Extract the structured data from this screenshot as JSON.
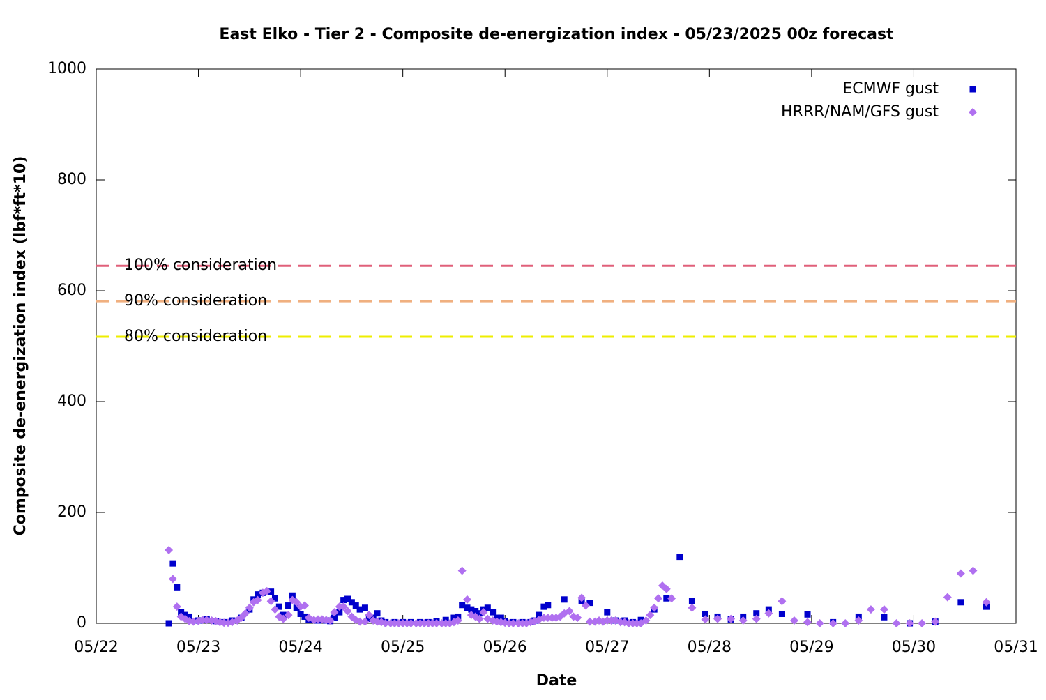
{
  "chart_data": {
    "type": "scatter",
    "title": "East Elko - Tier 2 - Composite de-energization index - 05/23/2025 00z forecast",
    "xlabel": "Date",
    "ylabel": "Composite de-energization index (lbf*ft*10)",
    "xlim": [
      0,
      9
    ],
    "xticks": [
      {
        "value": 0,
        "label": "05/22"
      },
      {
        "value": 1,
        "label": "05/23"
      },
      {
        "value": 2,
        "label": "05/24"
      },
      {
        "value": 3,
        "label": "05/25"
      },
      {
        "value": 4,
        "label": "05/26"
      },
      {
        "value": 5,
        "label": "05/27"
      },
      {
        "value": 6,
        "label": "05/28"
      },
      {
        "value": 7,
        "label": "05/29"
      },
      {
        "value": 8,
        "label": "05/30"
      },
      {
        "value": 9,
        "label": "05/31"
      }
    ],
    "ylim": [
      0,
      1000
    ],
    "yticks": [
      0,
      200,
      400,
      600,
      800,
      1000
    ],
    "legend": "top-right",
    "reference_lines": [
      {
        "label": "100% consideration",
        "value": 645,
        "color": "#e0607a"
      },
      {
        "label": "90% consideration",
        "value": 581,
        "color": "#f0b080"
      },
      {
        "label": "80% consideration",
        "value": 517,
        "color": "#eeee00"
      }
    ],
    "series": [
      {
        "name": "ECMWF gust",
        "color": "#0000cc",
        "marker": "square",
        "x": [
          0.71,
          0.75,
          0.79,
          0.83,
          0.87,
          0.91,
          1.0,
          1.08,
          1.17,
          1.25,
          1.33,
          1.42,
          1.5,
          1.54,
          1.58,
          1.63,
          1.71,
          1.75,
          1.79,
          1.83,
          1.88,
          1.92,
          1.96,
          2.0,
          2.04,
          2.08,
          2.17,
          2.25,
          2.29,
          2.33,
          2.38,
          2.42,
          2.46,
          2.5,
          2.54,
          2.58,
          2.63,
          2.67,
          2.71,
          2.75,
          2.79,
          2.83,
          2.92,
          3.0,
          3.08,
          3.17,
          3.25,
          3.33,
          3.42,
          3.5,
          3.54,
          3.58,
          3.63,
          3.67,
          3.71,
          3.75,
          3.79,
          3.83,
          3.88,
          3.92,
          3.96,
          4.0,
          4.08,
          4.17,
          4.25,
          4.29,
          4.33,
          4.38,
          4.42,
          4.58,
          4.75,
          4.83,
          5.0,
          5.08,
          5.17,
          5.25,
          5.33,
          5.46,
          5.58,
          5.71,
          5.83,
          5.96,
          6.08,
          6.21,
          6.33,
          6.46,
          6.58,
          6.71,
          6.96,
          7.21,
          7.46,
          7.71,
          7.96,
          8.21,
          8.46,
          8.71
        ],
        "values": [
          0,
          108,
          65,
          20,
          15,
          12,
          5,
          7,
          4,
          2,
          5,
          10,
          25,
          43,
          52,
          55,
          57,
          45,
          30,
          15,
          32,
          50,
          28,
          17,
          12,
          6,
          5,
          5,
          4,
          10,
          20,
          42,
          44,
          38,
          32,
          25,
          28,
          8,
          10,
          18,
          5,
          2,
          2,
          2,
          2,
          2,
          2,
          4,
          6,
          10,
          12,
          33,
          28,
          25,
          22,
          18,
          25,
          28,
          20,
          10,
          10,
          4,
          2,
          2,
          2,
          5,
          15,
          30,
          33,
          43,
          40,
          37,
          20,
          5,
          5,
          2,
          6,
          25,
          45,
          120,
          40,
          17,
          12,
          7,
          12,
          18,
          25,
          17,
          16,
          2,
          12,
          11,
          0,
          3,
          38,
          30
        ]
      },
      {
        "name": "HRRR/NAM/GFS gust",
        "color": "#b070f0",
        "marker": "diamond",
        "x": [
          0.71,
          0.75,
          0.79,
          0.83,
          0.87,
          0.91,
          0.95,
          1.0,
          1.04,
          1.08,
          1.13,
          1.17,
          1.21,
          1.25,
          1.29,
          1.33,
          1.38,
          1.42,
          1.46,
          1.5,
          1.54,
          1.58,
          1.63,
          1.67,
          1.71,
          1.75,
          1.79,
          1.83,
          1.88,
          1.92,
          1.96,
          2.0,
          2.04,
          2.08,
          2.13,
          2.17,
          2.21,
          2.25,
          2.29,
          2.33,
          2.38,
          2.42,
          2.46,
          2.5,
          2.54,
          2.58,
          2.63,
          2.67,
          2.71,
          2.75,
          2.79,
          2.83,
          2.88,
          2.92,
          2.96,
          3.0,
          3.04,
          3.08,
          3.13,
          3.17,
          3.21,
          3.25,
          3.29,
          3.33,
          3.38,
          3.42,
          3.46,
          3.5,
          3.54,
          3.58,
          3.63,
          3.67,
          3.71,
          3.75,
          3.79,
          3.83,
          3.88,
          3.92,
          3.96,
          4.0,
          4.04,
          4.08,
          4.13,
          4.17,
          4.21,
          4.25,
          4.29,
          4.33,
          4.38,
          4.42,
          4.46,
          4.5,
          4.54,
          4.58,
          4.63,
          4.67,
          4.71,
          4.75,
          4.79,
          4.83,
          4.88,
          4.92,
          4.96,
          5.0,
          5.04,
          5.08,
          5.13,
          5.17,
          5.21,
          5.25,
          5.29,
          5.33,
          5.38,
          5.42,
          5.46,
          5.5,
          5.54,
          5.58,
          5.63,
          5.83,
          5.96,
          6.08,
          6.21,
          6.33,
          6.46,
          6.58,
          6.71,
          6.83,
          6.96,
          7.08,
          7.21,
          7.33,
          7.46,
          7.58,
          7.71,
          7.83,
          7.96,
          8.08,
          8.21,
          8.33,
          8.46,
          8.58,
          8.71
        ],
        "values": [
          132,
          80,
          30,
          12,
          8,
          4,
          3,
          4,
          6,
          6,
          5,
          4,
          2,
          1,
          1,
          2,
          5,
          10,
          18,
          28,
          38,
          42,
          55,
          58,
          40,
          25,
          12,
          8,
          15,
          42,
          38,
          30,
          32,
          10,
          6,
          7,
          7,
          6,
          5,
          20,
          30,
          30,
          22,
          12,
          6,
          3,
          3,
          15,
          5,
          3,
          2,
          0,
          0,
          0,
          0,
          0,
          0,
          0,
          0,
          0,
          0,
          0,
          0,
          0,
          0,
          0,
          0,
          2,
          5,
          95,
          43,
          15,
          12,
          8,
          20,
          8,
          5,
          3,
          2,
          1,
          0,
          0,
          0,
          0,
          0,
          2,
          4,
          6,
          10,
          10,
          10,
          10,
          12,
          18,
          22,
          12,
          10,
          46,
          32,
          3,
          3,
          5,
          3,
          5,
          5,
          5,
          2,
          2,
          0,
          0,
          0,
          0,
          5,
          15,
          28,
          45,
          68,
          62,
          45,
          28,
          7,
          8,
          8,
          5,
          8,
          18,
          40,
          5,
          2,
          0,
          0,
          0,
          5,
          25,
          25,
          0,
          0,
          0,
          3,
          47,
          90,
          95,
          38
        ]
      }
    ]
  }
}
